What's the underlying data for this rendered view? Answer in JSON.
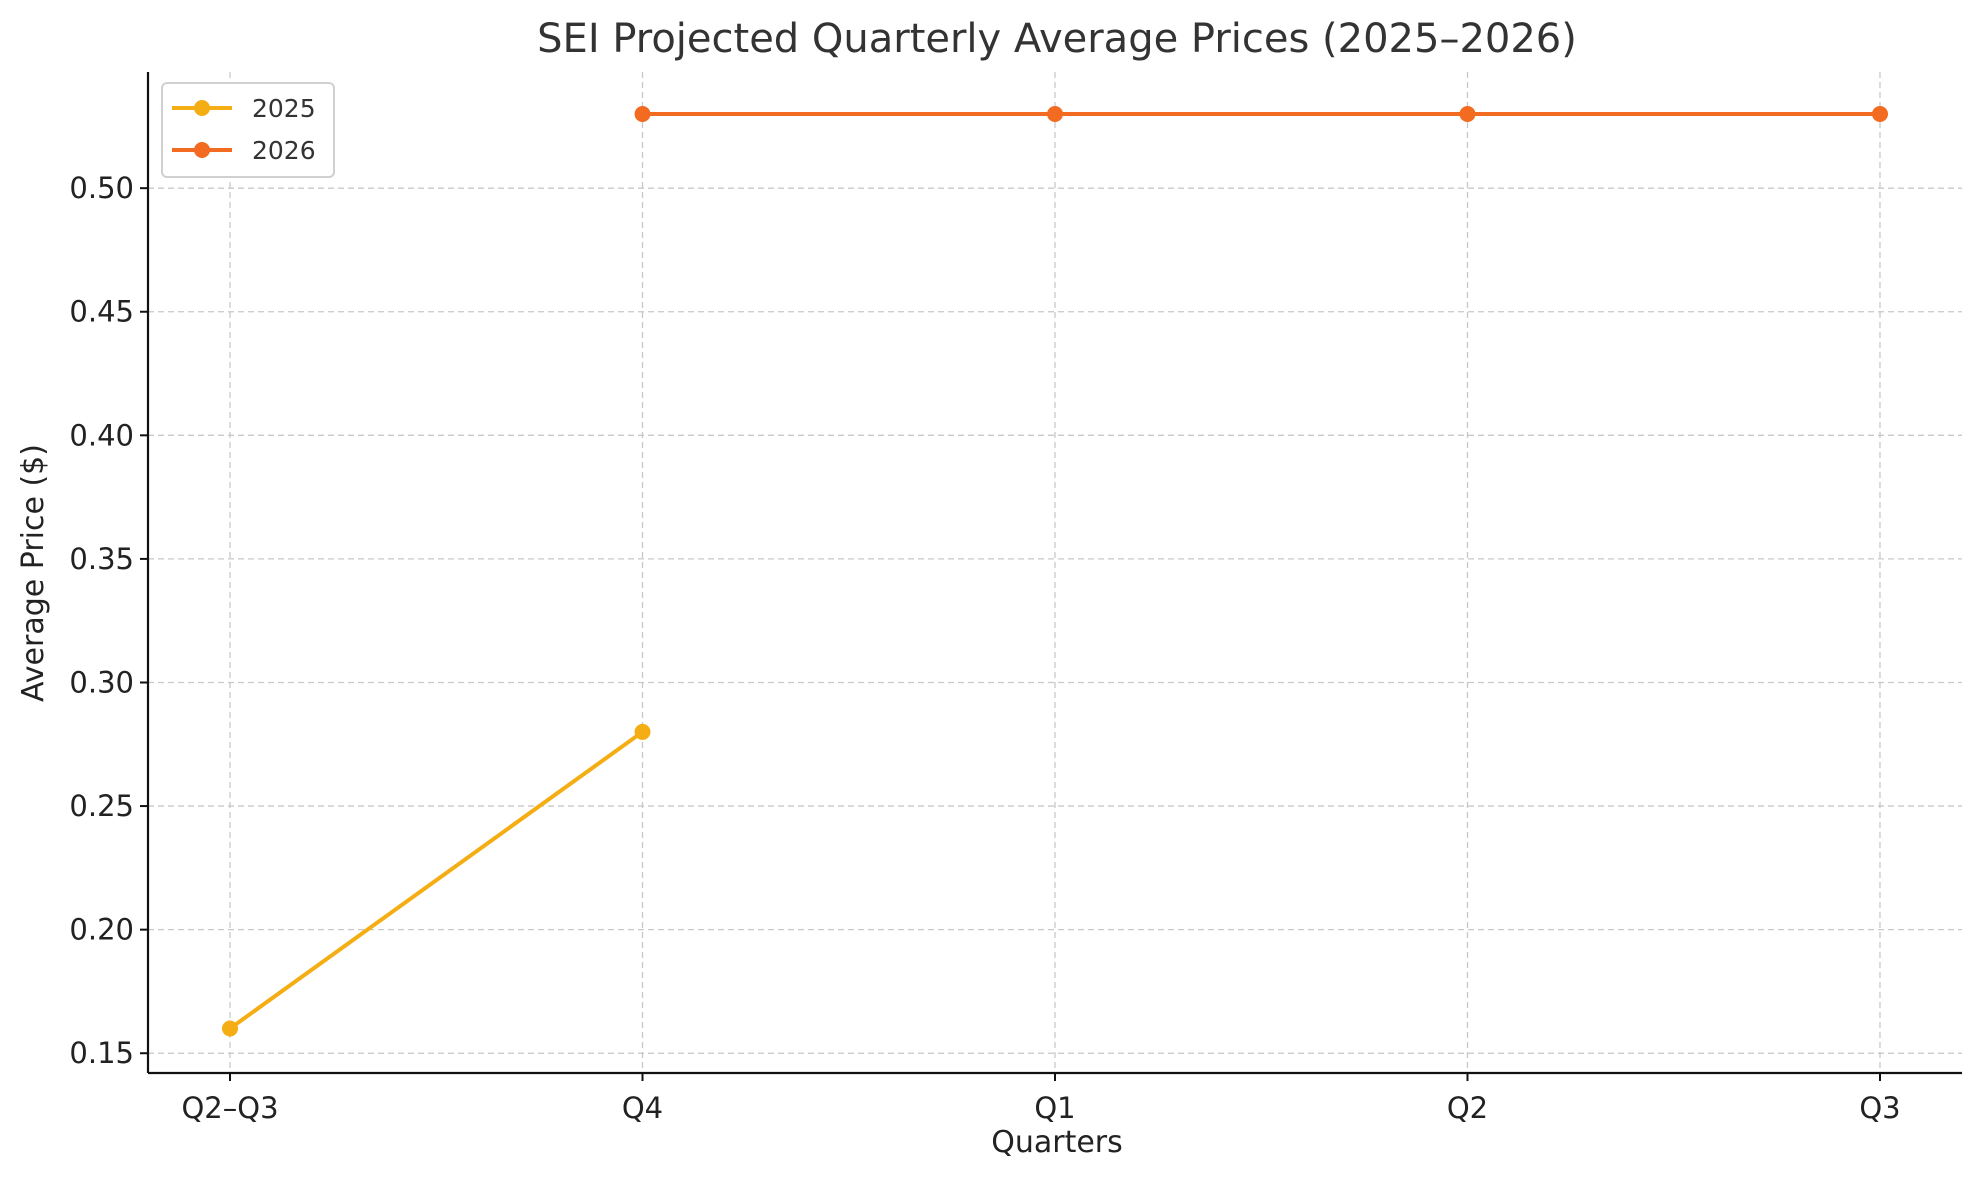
{
  "chart_data": {
    "type": "line",
    "title": "SEI Projected Quarterly Average Prices (2025–2026)",
    "xlabel": "Quarters",
    "ylabel": "Average Price ($)",
    "categories": [
      "Q2–Q3",
      "Q4",
      "Q1",
      "Q2",
      "Q3"
    ],
    "ylim": [
      0.142,
      0.547
    ],
    "yticks": [
      0.15,
      0.2,
      0.25,
      0.3,
      0.35,
      0.4,
      0.45,
      0.5
    ],
    "grid": true,
    "legend_position": "top-left",
    "series": [
      {
        "name": "2025",
        "color": "#f5ad14",
        "points": [
          {
            "x": "Q2–Q3",
            "y": 0.16
          },
          {
            "x": "Q4",
            "y": 0.28
          }
        ]
      },
      {
        "name": "2026",
        "color": "#f26b21",
        "points": [
          {
            "x": "Q4",
            "y": 0.53
          },
          {
            "x": "Q1",
            "y": 0.53
          },
          {
            "x": "Q2",
            "y": 0.53
          },
          {
            "x": "Q3",
            "y": 0.53
          }
        ]
      }
    ]
  }
}
